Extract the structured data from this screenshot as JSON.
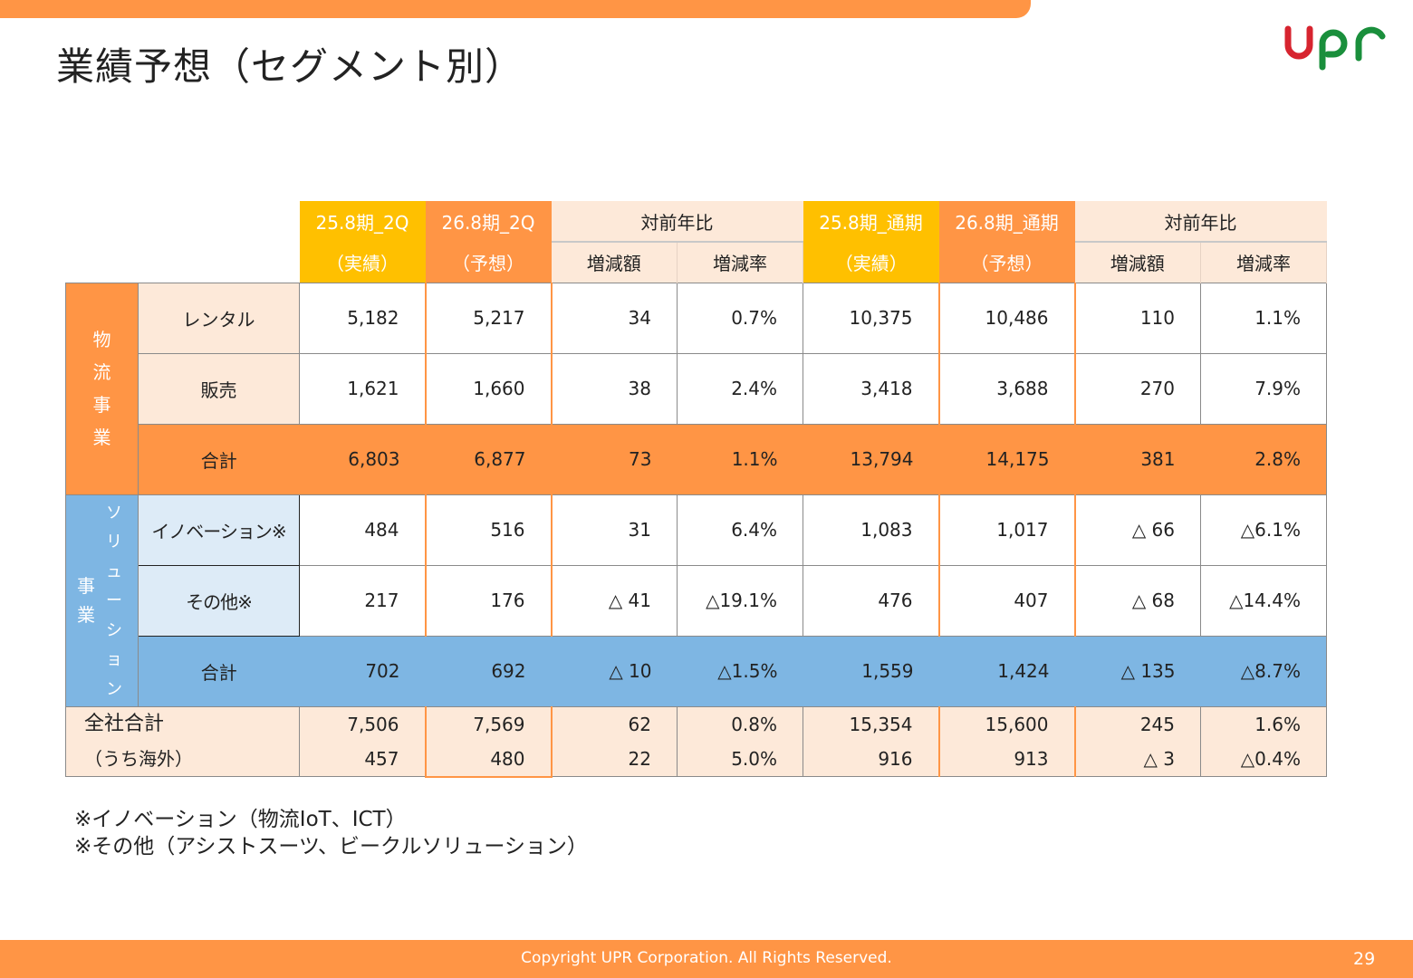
{
  "title": "業績予想（セグメント別）",
  "logo": {
    "text": "upr",
    "colors": {
      "u": "#d7242f",
      "p": "#1a8f3c",
      "r": "#1a8f3c"
    }
  },
  "table": {
    "headers": {
      "h1": {
        "line1": "25.8期_2Q",
        "line2": "（実績）"
      },
      "h2": {
        "line1": "26.8期_2Q",
        "line2": "（予想）"
      },
      "h3": {
        "label": "対前年比",
        "sub1": "増減額",
        "sub2": "増減率"
      },
      "h4": {
        "line1": "25.8期_通期",
        "line2": "（実績）"
      },
      "h5": {
        "line1": "26.8期_通期",
        "line2": "（予想）"
      },
      "h6": {
        "label": "対前年比",
        "sub1": "増減額",
        "sub2": "増減率"
      }
    },
    "group1": {
      "label": [
        "物",
        "流",
        "事",
        "業"
      ]
    },
    "group2": {
      "label_solution": [
        "ソ",
        "リ",
        "ュ",
        "ー",
        "シ",
        "ョ",
        "ン"
      ],
      "label_jigyo": [
        "事",
        "業"
      ]
    },
    "rows": [
      {
        "label": "レンタル",
        "values": [
          "5,182",
          "5,217",
          "34",
          "0.7%",
          "10,375",
          "10,486",
          "110",
          "1.1%"
        ]
      },
      {
        "label": "販売",
        "values": [
          "1,621",
          "1,660",
          "38",
          "2.4%",
          "3,418",
          "3,688",
          "270",
          "7.9%"
        ]
      },
      {
        "label": "合計",
        "values": [
          "6,803",
          "6,877",
          "73",
          "1.1%",
          "13,794",
          "14,175",
          "381",
          "2.8%"
        ]
      },
      {
        "label": "イノベーション※",
        "values": [
          "484",
          "516",
          "31",
          "6.4%",
          "1,083",
          "1,017",
          "△ 66",
          "△6.1%"
        ]
      },
      {
        "label": "その他※",
        "values": [
          "217",
          "176",
          "△ 41",
          "△19.1%",
          "476",
          "407",
          "△ 68",
          "△14.4%"
        ]
      },
      {
        "label": "合計",
        "values": [
          "702",
          "692",
          "△ 10",
          "△1.5%",
          "1,559",
          "1,424",
          "△ 135",
          "△8.7%"
        ]
      }
    ],
    "total": {
      "label1": "全社合計",
      "label2": "（うち海外）",
      "values1": [
        "7,506",
        "7,569",
        "62",
        "0.8%",
        "15,354",
        "15,600",
        "245",
        "1.6%"
      ],
      "values2": [
        "457",
        "480",
        "22",
        "5.0%",
        "916",
        "913",
        "△ 3",
        "△0.4%"
      ]
    }
  },
  "notes": [
    "※イノベーション（物流IoT、ICT）",
    "※その他（アシストスーツ、ビークルソリューション）"
  ],
  "footer": {
    "copyright": "Copyright UPR Corporation. All Rights Reserved.",
    "page": "29"
  },
  "colors": {
    "orange": "#ff9545",
    "yellow": "#ffc000",
    "peach": "#fde9d9",
    "blue": "#7eb6e3",
    "light_blue": "#ddebf7"
  }
}
